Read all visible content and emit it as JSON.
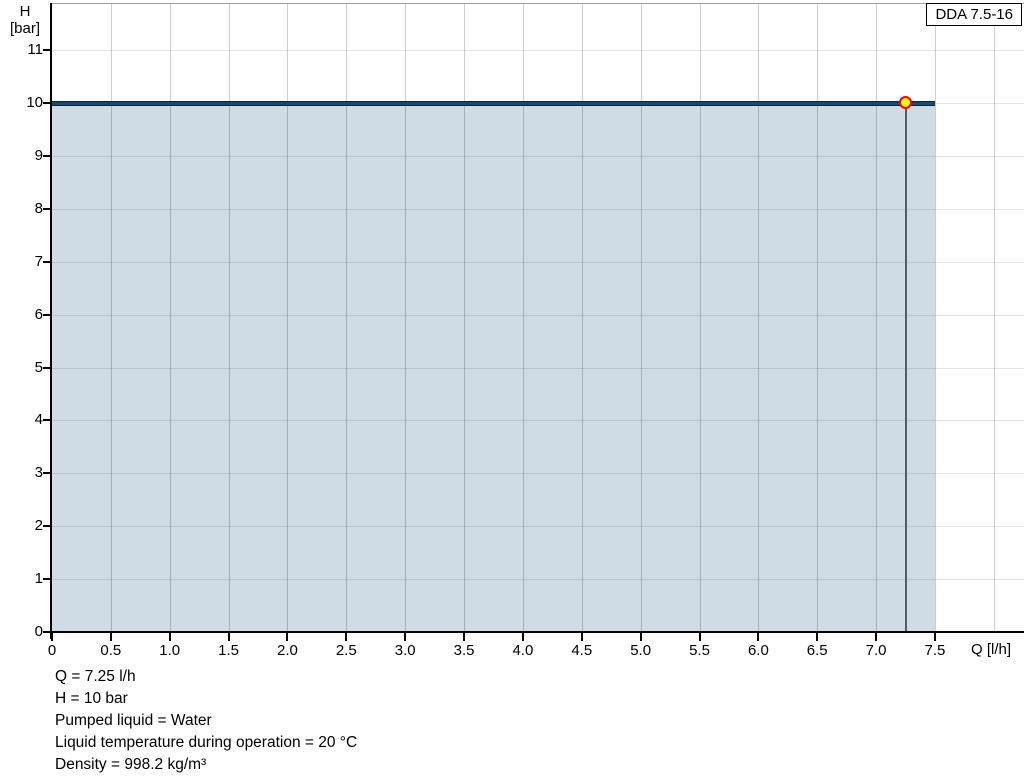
{
  "window": {
    "background": "#ffffff"
  },
  "title_box": {
    "label": "DDA 7.5-16"
  },
  "chart_data": {
    "type": "area",
    "title": "DDA 7.5-16",
    "xlabel": "Q [l/h]",
    "ylabel": "H [bar]",
    "ylabel_lines": [
      "H",
      "[bar]"
    ],
    "x_ticks": {
      "values": [
        0,
        0.5,
        1,
        1.5,
        2,
        2.5,
        3,
        3.5,
        4,
        4.5,
        5,
        5.5,
        6,
        6.5,
        7,
        7.5
      ],
      "labels": [
        "0",
        "0.5",
        "1.0",
        "1.5",
        "2.0",
        "2.5",
        "3.0",
        "3.5",
        "4.0",
        "4.5",
        "5.0",
        "5.5",
        "6.0",
        "6.5",
        "7.0",
        "7.5"
      ]
    },
    "y_ticks": {
      "values": [
        0,
        1,
        2,
        3,
        4,
        5,
        6,
        7,
        8,
        9,
        10,
        11
      ],
      "labels": [
        "0",
        "1",
        "2",
        "3",
        "4",
        "5",
        "6",
        "7",
        "8",
        "9",
        "10",
        "11"
      ]
    },
    "x_grid_values": [
      0.5,
      1,
      1.5,
      2,
      2.5,
      3,
      3.5,
      4,
      4.5,
      5,
      5.5,
      6,
      6.5,
      7,
      7.5,
      8
    ],
    "y_grid_values": [
      1,
      2,
      3,
      4,
      5,
      6,
      7,
      8,
      9,
      10,
      11
    ],
    "xlim": [
      0,
      8.26
    ],
    "ylim": [
      0,
      11.9
    ],
    "grid": true,
    "legend_position": "top-right",
    "series": [
      {
        "name": "pump-curve",
        "points": [
          {
            "q": 0,
            "h": 10
          },
          {
            "q": 7.5,
            "h": 10
          }
        ],
        "color": "#1b4977"
      }
    ],
    "area_fill": {
      "q_from": 0,
      "q_to": 7.5,
      "h_top": 10,
      "color": "#cfdbe5"
    },
    "operating_point": {
      "q": 7.25,
      "h": 10,
      "marker_fill": "#ffff00",
      "marker_stroke": "#ff0000",
      "drop_line_color": "#4f5d6d"
    }
  },
  "colors": {
    "axis": "#000000",
    "grid_horizontal": "rgba(0,0,0,0.10)",
    "grid_vertical": "rgba(0,0,0,0.20)",
    "plot_top_border": "#a0a0a0",
    "curve": "#1b4977",
    "curve_edge": "#0a2438"
  },
  "footer": {
    "lines": [
      "Q = 7.25 l/h",
      "H = 10 bar",
      "Pumped liquid = Water",
      "Liquid temperature during operation = 20 °C",
      "Density = 998.2 kg/m³"
    ]
  }
}
